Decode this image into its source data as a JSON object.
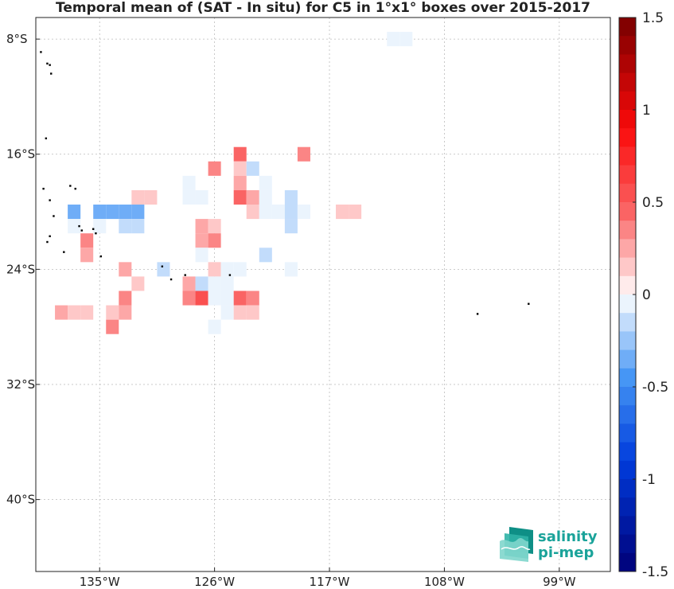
{
  "title": "Temporal mean of (SAT - In situ) for C5 in 1°x1° boxes over 2015-2017",
  "map": {
    "lon_range": [
      -140,
      -95
    ],
    "lat_range": [
      -45,
      -6.5
    ],
    "lon_ticks": [
      {
        "value": -135,
        "label": "135°W"
      },
      {
        "value": -126,
        "label": "126°W"
      },
      {
        "value": -117,
        "label": "117°W"
      },
      {
        "value": -108,
        "label": "108°W"
      },
      {
        "value": -99,
        "label": "99°W"
      }
    ],
    "lat_ticks": [
      {
        "value": -8,
        "label": "8°S"
      },
      {
        "value": -16,
        "label": "16°S"
      },
      {
        "value": -24,
        "label": "24°S"
      },
      {
        "value": -32,
        "label": "32°S"
      },
      {
        "value": -40,
        "label": "40°S"
      }
    ],
    "grid": true
  },
  "colorbar": {
    "min": -1.5,
    "max": 1.5,
    "levels": 30,
    "ticks": [
      {
        "value": 1.5,
        "label": "1.5"
      },
      {
        "value": 1,
        "label": "1"
      },
      {
        "value": 0.5,
        "label": "0.5"
      },
      {
        "value": 0,
        "label": "0"
      },
      {
        "value": -0.5,
        "label": "-0.5"
      },
      {
        "value": -1,
        "label": "-1"
      },
      {
        "value": -1.5,
        "label": "-1.5"
      }
    ]
  },
  "chart_data": {
    "type": "heatmap",
    "title": "Temporal mean of (SAT - In situ) for C5 in 1°x1° boxes over 2015-2017",
    "cell_size_deg": 1,
    "cells": [
      {
        "lon": -112,
        "lat": -8,
        "v": -0.08
      },
      {
        "lon": -111,
        "lat": -8,
        "v": -0.08
      },
      {
        "lon": -124,
        "lat": -16,
        "v": 0.45
      },
      {
        "lon": -119,
        "lat": -16,
        "v": 0.3
      },
      {
        "lon": -126,
        "lat": -17,
        "v": 0.35
      },
      {
        "lon": -124,
        "lat": -17,
        "v": 0.15
      },
      {
        "lon": -123,
        "lat": -17,
        "v": -0.2
      },
      {
        "lon": -128,
        "lat": -18,
        "v": -0.08
      },
      {
        "lon": -124,
        "lat": -18,
        "v": 0.25
      },
      {
        "lon": -122,
        "lat": -18,
        "v": -0.08
      },
      {
        "lon": -132,
        "lat": -19,
        "v": 0.1
      },
      {
        "lon": -131,
        "lat": -19,
        "v": 0.1
      },
      {
        "lon": -128,
        "lat": -19,
        "v": -0.08
      },
      {
        "lon": -127,
        "lat": -19,
        "v": -0.08
      },
      {
        "lon": -124,
        "lat": -19,
        "v": 0.45
      },
      {
        "lon": -123,
        "lat": -19,
        "v": 0.2
      },
      {
        "lon": -122,
        "lat": -19,
        "v": -0.08
      },
      {
        "lon": -120,
        "lat": -19,
        "v": -0.2
      },
      {
        "lon": -137,
        "lat": -20,
        "v": -0.35
      },
      {
        "lon": -135,
        "lat": -20,
        "v": -0.3
      },
      {
        "lon": -134,
        "lat": -20,
        "v": -0.3
      },
      {
        "lon": -133,
        "lat": -20,
        "v": -0.3
      },
      {
        "lon": -132,
        "lat": -20,
        "v": -0.3
      },
      {
        "lon": -123,
        "lat": -20,
        "v": 0.15
      },
      {
        "lon": -122,
        "lat": -20,
        "v": -0.08
      },
      {
        "lon": -121,
        "lat": -20,
        "v": -0.08
      },
      {
        "lon": -120,
        "lat": -20,
        "v": -0.12
      },
      {
        "lon": -119,
        "lat": -20,
        "v": -0.08
      },
      {
        "lon": -116,
        "lat": -20,
        "v": 0.1
      },
      {
        "lon": -115,
        "lat": -20,
        "v": 0.1
      },
      {
        "lon": -137,
        "lat": -21,
        "v": -0.08
      },
      {
        "lon": -135,
        "lat": -21,
        "v": -0.08
      },
      {
        "lon": -133,
        "lat": -21,
        "v": -0.15
      },
      {
        "lon": -132,
        "lat": -21,
        "v": -0.15
      },
      {
        "lon": -127,
        "lat": -21,
        "v": 0.25
      },
      {
        "lon": -126,
        "lat": -21,
        "v": 0.15
      },
      {
        "lon": -120,
        "lat": -21,
        "v": -0.2
      },
      {
        "lon": -136,
        "lat": -22,
        "v": 0.35
      },
      {
        "lon": -127,
        "lat": -22,
        "v": 0.2
      },
      {
        "lon": -126,
        "lat": -22,
        "v": 0.4
      },
      {
        "lon": -136,
        "lat": -23,
        "v": 0.25
      },
      {
        "lon": -127,
        "lat": -23,
        "v": -0.08
      },
      {
        "lon": -122,
        "lat": -23,
        "v": -0.12
      },
      {
        "lon": -133,
        "lat": -24,
        "v": 0.2
      },
      {
        "lon": -130,
        "lat": -24,
        "v": -0.1
      },
      {
        "lon": -126,
        "lat": -24,
        "v": 0.1
      },
      {
        "lon": -125,
        "lat": -24,
        "v": -0.08
      },
      {
        "lon": -124,
        "lat": -24,
        "v": -0.08
      },
      {
        "lon": -120,
        "lat": -24,
        "v": -0.08
      },
      {
        "lon": -132,
        "lat": -25,
        "v": 0.15
      },
      {
        "lon": -128,
        "lat": -25,
        "v": 0.2
      },
      {
        "lon": -127,
        "lat": -25,
        "v": -0.18
      },
      {
        "lon": -126,
        "lat": -25,
        "v": -0.08
      },
      {
        "lon": -125,
        "lat": -25,
        "v": -0.08
      },
      {
        "lon": -133,
        "lat": -26,
        "v": 0.35
      },
      {
        "lon": -128,
        "lat": -26,
        "v": 0.4
      },
      {
        "lon": -127,
        "lat": -26,
        "v": 0.55
      },
      {
        "lon": -126,
        "lat": -26,
        "v": -0.08
      },
      {
        "lon": -125,
        "lat": -26,
        "v": -0.08
      },
      {
        "lon": -124,
        "lat": -26,
        "v": 0.45
      },
      {
        "lon": -123,
        "lat": -26,
        "v": 0.4
      },
      {
        "lon": -138,
        "lat": -27,
        "v": 0.25
      },
      {
        "lon": -137,
        "lat": -27,
        "v": 0.1
      },
      {
        "lon": -136,
        "lat": -27,
        "v": 0.1
      },
      {
        "lon": -134,
        "lat": -27,
        "v": 0.1
      },
      {
        "lon": -133,
        "lat": -27,
        "v": 0.25
      },
      {
        "lon": -125,
        "lat": -27,
        "v": -0.08
      },
      {
        "lon": -124,
        "lat": -27,
        "v": 0.1
      },
      {
        "lon": -123,
        "lat": -27,
        "v": 0.1
      },
      {
        "lon": -134,
        "lat": -28,
        "v": 0.3
      },
      {
        "lon": -126,
        "lat": -28,
        "v": -0.08
      }
    ]
  },
  "islands": [
    {
      "lon": -139.6,
      "lat": -8.9
    },
    {
      "lon": -139.1,
      "lat": -9.7
    },
    {
      "lon": -138.9,
      "lat": -9.8
    },
    {
      "lon": -138.8,
      "lat": -10.4
    },
    {
      "lon": -139.2,
      "lat": -14.9
    },
    {
      "lon": -139.4,
      "lat": -18.4
    },
    {
      "lon": -138.9,
      "lat": -19.2
    },
    {
      "lon": -137.3,
      "lat": -18.2
    },
    {
      "lon": -136.9,
      "lat": -18.4
    },
    {
      "lon": -136.6,
      "lat": -21.0
    },
    {
      "lon": -136.4,
      "lat": -21.3
    },
    {
      "lon": -135.5,
      "lat": -21.2
    },
    {
      "lon": -135.3,
      "lat": -21.5
    },
    {
      "lon": -138.6,
      "lat": -20.3
    },
    {
      "lon": -138.9,
      "lat": -21.7
    },
    {
      "lon": -139.1,
      "lat": -22.1
    },
    {
      "lon": -137.8,
      "lat": -22.8
    },
    {
      "lon": -134.9,
      "lat": -23.1
    },
    {
      "lon": -130.1,
      "lat": -23.8
    },
    {
      "lon": -128.3,
      "lat": -24.4
    },
    {
      "lon": -124.8,
      "lat": -24.4
    },
    {
      "lon": -129.4,
      "lat": -24.7
    },
    {
      "lon": -105.4,
      "lat": -27.1
    },
    {
      "lon": -101.4,
      "lat": -26.4
    }
  ],
  "logo": {
    "line1": "salinity",
    "line2": "pi-mep",
    "color": "#1aa39a"
  }
}
